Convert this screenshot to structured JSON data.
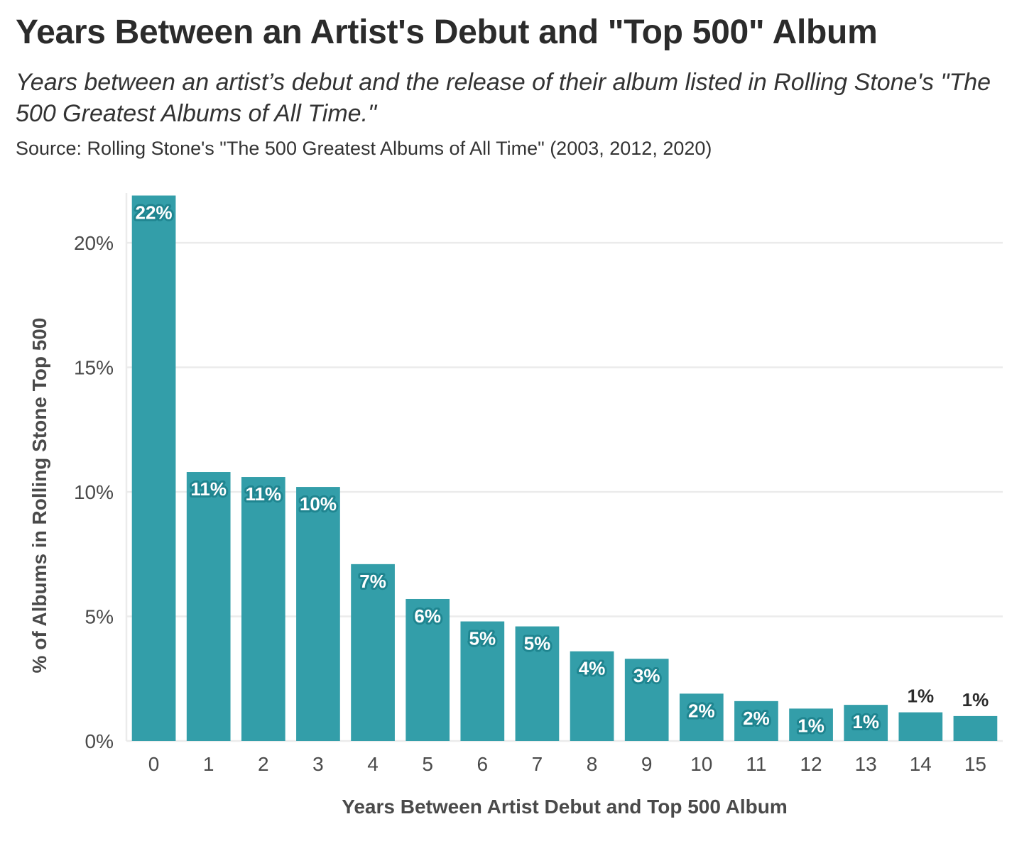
{
  "title": "Years Between an Artist's Debut and \"Top 500\" Album",
  "subtitle": "Years between an artist’s debut and the release of their album listed in Rolling Stone's \"The 500 Greatest Albums of All Time.\"",
  "source": "Source: Rolling Stone's \"The 500 Greatest Albums of All Time\" (2003, 2012, 2020)",
  "colors": {
    "bar": "#339ea9",
    "label_outline": "#1f8590",
    "grid": "#ebebeb"
  },
  "chart_data": {
    "type": "bar",
    "xlabel": "Years Between Artist Debut and Top 500 Album",
    "ylabel": "% of Albums in Rolling Stone Top 500",
    "ylim": [
      0,
      22
    ],
    "yticks": [
      0,
      5,
      10,
      15,
      20
    ],
    "ytick_labels": [
      "0%",
      "5%",
      "10%",
      "15%",
      "20%"
    ],
    "grid": true,
    "categories": [
      "0",
      "1",
      "2",
      "3",
      "4",
      "5",
      "6",
      "7",
      "8",
      "9",
      "10",
      "11",
      "12",
      "13",
      "14",
      "15"
    ],
    "values": [
      21.9,
      10.8,
      10.6,
      10.2,
      7.1,
      5.7,
      4.8,
      4.6,
      3.6,
      3.3,
      1.9,
      1.6,
      1.3,
      1.45,
      1.15,
      1.0
    ],
    "data_labels": [
      "22%",
      "11%",
      "11%",
      "10%",
      "7%",
      "6%",
      "5%",
      "5%",
      "4%",
      "3%",
      "2%",
      "2%",
      "1%",
      "1%",
      "1%",
      "1%"
    ]
  }
}
